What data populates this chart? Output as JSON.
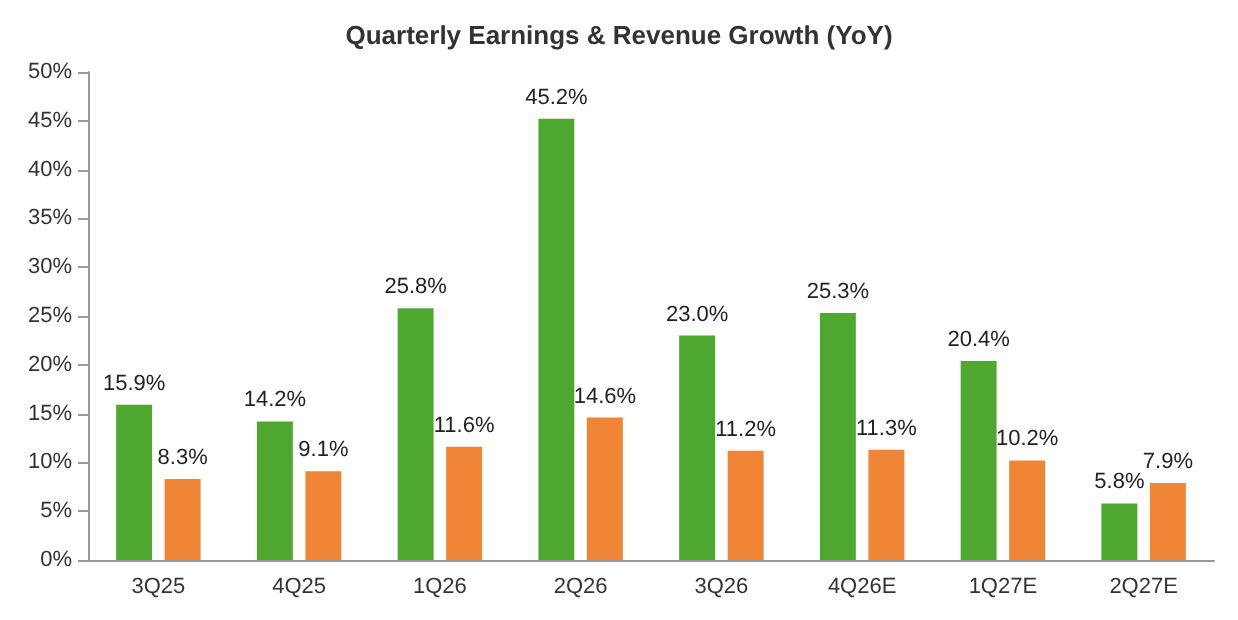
{
  "chart_data": {
    "type": "bar",
    "title": "Quarterly Earnings & Revenue Growth (YoY)",
    "categories": [
      "3Q25",
      "4Q25",
      "1Q26",
      "2Q26",
      "3Q26",
      "4Q26E",
      "1Q27E",
      "2Q27E"
    ],
    "series": [
      {
        "color": "#4ea72e",
        "values": [
          15.9,
          14.2,
          25.8,
          45.2,
          23.0,
          25.3,
          20.4,
          5.8
        ],
        "value_labels": [
          "15.9%",
          "14.2%",
          "25.8%",
          "45.2%",
          "23.0%",
          "25.3%",
          "20.4%",
          "5.8%"
        ]
      },
      {
        "color": "#f08536",
        "values": [
          8.3,
          9.1,
          11.6,
          14.6,
          11.2,
          11.3,
          10.2,
          7.9
        ],
        "value_labels": [
          "8.3%",
          "9.1%",
          "11.6%",
          "14.6%",
          "11.2%",
          "11.3%",
          "10.2%",
          "7.9%"
        ]
      }
    ],
    "ylim": [
      0,
      50
    ],
    "yticks": [
      {
        "value": 0,
        "label": "0%"
      },
      {
        "value": 5,
        "label": "5%"
      },
      {
        "value": 10,
        "label": "10%"
      },
      {
        "value": 15,
        "label": "15%"
      },
      {
        "value": 20,
        "label": "20%"
      },
      {
        "value": 25,
        "label": "25%"
      },
      {
        "value": 30,
        "label": "30%"
      },
      {
        "value": 35,
        "label": "35%"
      },
      {
        "value": 40,
        "label": "40%"
      },
      {
        "value": 45,
        "label": "45%"
      },
      {
        "value": 50,
        "label": "50%"
      }
    ],
    "grid": false
  }
}
